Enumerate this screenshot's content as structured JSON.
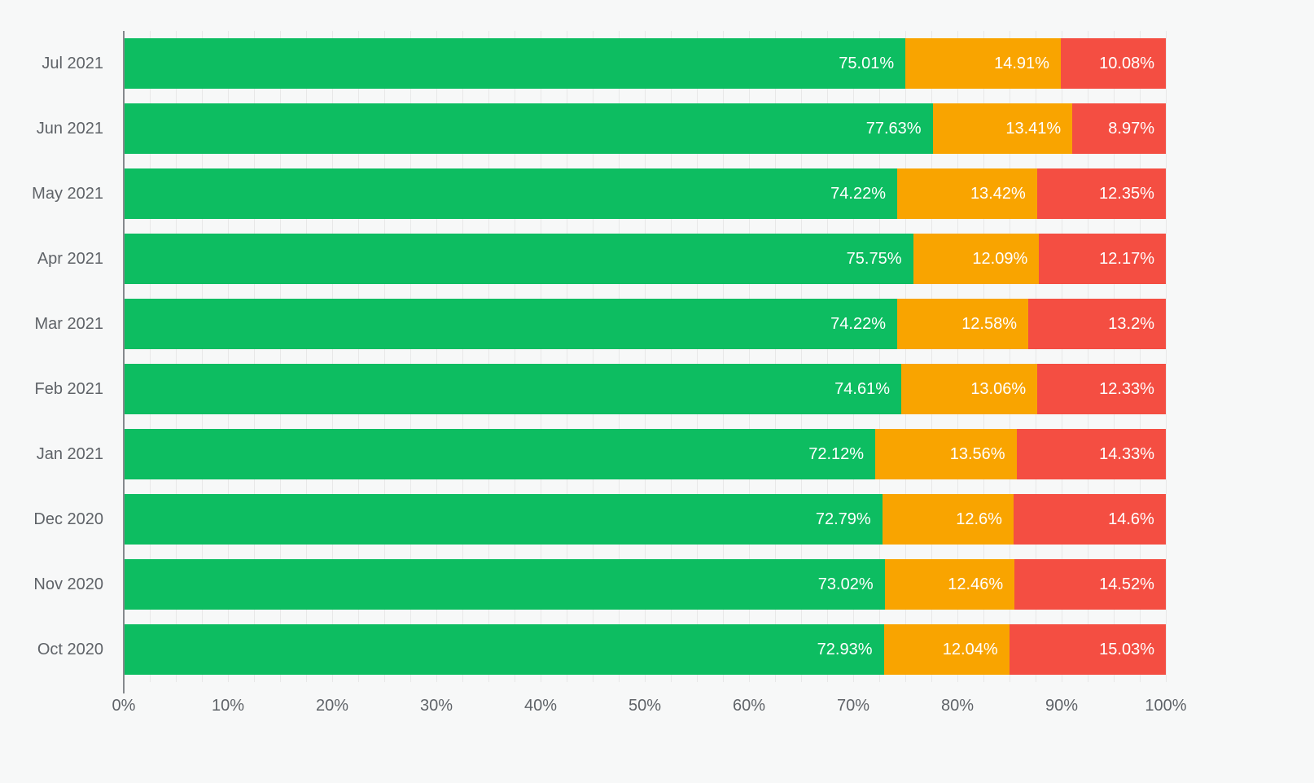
{
  "colors": {
    "background": "#f7f8f8",
    "green": "#0dbd61",
    "orange": "#f9a400",
    "red": "#f44e42",
    "axis_text": "#5f6368",
    "axis_line": "#85898d",
    "gridline": "#e8e8e8",
    "bar_label_text": "#ffffff"
  },
  "chart_data": {
    "type": "bar",
    "stacked": true,
    "orientation": "horizontal",
    "title": "",
    "xlabel": "",
    "ylabel": "",
    "xlim": [
      0,
      100
    ],
    "legend": "none",
    "grid": "vertical-minor",
    "categories": [
      "Jul 2021",
      "Jun 2021",
      "May 2021",
      "Apr 2021",
      "Mar 2021",
      "Feb 2021",
      "Jan 2021",
      "Dec 2020",
      "Nov 2020",
      "Oct 2020"
    ],
    "series": [
      {
        "name": "green",
        "color": "#0dbd61",
        "values": [
          75.01,
          77.63,
          74.22,
          75.75,
          74.22,
          74.61,
          72.12,
          72.79,
          73.02,
          72.93
        ],
        "labels": [
          "75.01%",
          "77.63%",
          "74.22%",
          "75.75%",
          "74.22%",
          "74.61%",
          "72.12%",
          "72.79%",
          "73.02%",
          "72.93%"
        ]
      },
      {
        "name": "orange",
        "color": "#f9a400",
        "values": [
          14.91,
          13.41,
          13.42,
          12.09,
          12.58,
          13.06,
          13.56,
          12.6,
          12.46,
          12.04
        ],
        "labels": [
          "14.91%",
          "13.41%",
          "13.42%",
          "12.09%",
          "12.58%",
          "13.06%",
          "13.56%",
          "12.6%",
          "12.46%",
          "12.04%"
        ]
      },
      {
        "name": "red",
        "color": "#f44e42",
        "values": [
          10.08,
          8.97,
          12.35,
          12.17,
          13.2,
          12.33,
          14.33,
          14.6,
          14.52,
          15.03
        ],
        "labels": [
          "10.08%",
          "8.97%",
          "12.35%",
          "12.17%",
          "13.2%",
          "12.33%",
          "14.33%",
          "14.6%",
          "14.52%",
          "15.03%"
        ]
      }
    ],
    "axis": {
      "tick_labels": [
        "0%",
        "10%",
        "20%",
        "30%",
        "40%",
        "50%",
        "60%",
        "70%",
        "80%",
        "90%",
        "100%"
      ],
      "tick_step_pct": 10,
      "gridline_step_pct": 2.5
    }
  }
}
